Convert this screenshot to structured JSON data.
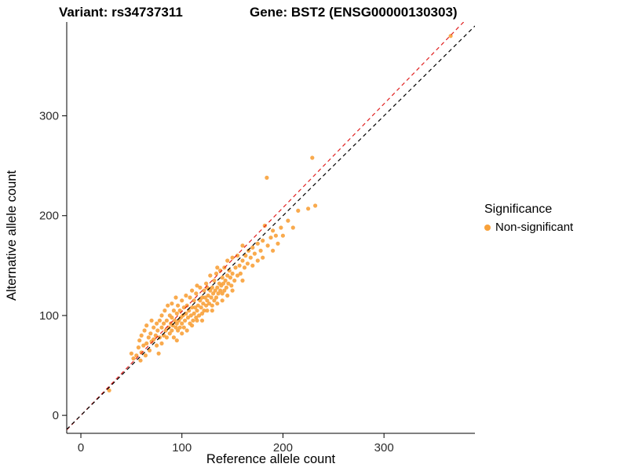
{
  "titles": {
    "variant": "Variant: rs34737311",
    "gene": "Gene: BST2 (ENSG00000130303)"
  },
  "legend": {
    "title": "Significance",
    "items": [
      {
        "label": "Non-significant",
        "color": "#F8A13A"
      }
    ]
  },
  "chart_data": {
    "type": "scatter",
    "title": "Variant: rs34737311 — Gene: BST2 (ENSG00000130303)",
    "xlabel": "Reference allele count",
    "ylabel": "Alternative allele count",
    "xlim": [
      -14,
      390
    ],
    "ylim": [
      -18,
      394
    ],
    "x_ticks": [
      0,
      100,
      200,
      300
    ],
    "y_ticks": [
      0,
      100,
      200,
      300
    ],
    "grid": false,
    "legend_position": "right",
    "point_color": "#F8A13A",
    "point_radius": 2.6,
    "lines": [
      {
        "name": "fit-line",
        "slope": 1.04,
        "intercept": 0,
        "color": "#E02020",
        "dash": "dashed"
      },
      {
        "name": "identity-line",
        "slope": 1.0,
        "intercept": 0,
        "color": "#000000",
        "dash": "dashed"
      }
    ],
    "series": [
      {
        "name": "Non-significant",
        "points": [
          [
            28,
            25
          ],
          [
            50,
            62
          ],
          [
            52,
            57
          ],
          [
            55,
            60
          ],
          [
            57,
            68
          ],
          [
            58,
            75
          ],
          [
            59,
            55
          ],
          [
            60,
            63
          ],
          [
            60,
            80
          ],
          [
            62,
            70
          ],
          [
            63,
            85
          ],
          [
            64,
            60
          ],
          [
            65,
            72
          ],
          [
            65,
            90
          ],
          [
            67,
            78
          ],
          [
            68,
            65
          ],
          [
            69,
            82
          ],
          [
            70,
            74
          ],
          [
            70,
            95
          ],
          [
            72,
            76
          ],
          [
            72,
            88
          ],
          [
            74,
            80
          ],
          [
            75,
            70
          ],
          [
            75,
            92
          ],
          [
            76,
            85
          ],
          [
            77,
            62
          ],
          [
            78,
            78
          ],
          [
            78,
            95
          ],
          [
            80,
            72
          ],
          [
            80,
            88
          ],
          [
            80,
            100
          ],
          [
            82,
            80
          ],
          [
            82,
            92
          ],
          [
            83,
            105
          ],
          [
            84,
            85
          ],
          [
            85,
            78
          ],
          [
            85,
            95
          ],
          [
            86,
            110
          ],
          [
            87,
            88
          ],
          [
            88,
            82
          ],
          [
            88,
            100
          ],
          [
            89,
            92
          ],
          [
            90,
            85
          ],
          [
            90,
            98
          ],
          [
            90,
            112
          ],
          [
            91,
            90
          ],
          [
            92,
            78
          ],
          [
            92,
            105
          ],
          [
            93,
            95
          ],
          [
            94,
            88
          ],
          [
            94,
            118
          ],
          [
            95,
            75
          ],
          [
            95,
            92
          ],
          [
            95,
            102
          ],
          [
            96,
            85
          ],
          [
            96,
            110
          ],
          [
            97,
            95
          ],
          [
            98,
            88
          ],
          [
            98,
            105
          ],
          [
            99,
            98
          ],
          [
            100,
            82
          ],
          [
            100,
            92
          ],
          [
            100,
            115
          ],
          [
            101,
            100
          ],
          [
            102,
            88
          ],
          [
            102,
            108
          ],
          [
            103,
            95
          ],
          [
            104,
            102
          ],
          [
            104,
            120
          ],
          [
            105,
            85
          ],
          [
            105,
            110
          ],
          [
            106,
            98
          ],
          [
            107,
            105
          ],
          [
            108,
            92
          ],
          [
            108,
            118
          ],
          [
            109,
            100
          ],
          [
            110,
            90
          ],
          [
            110,
            108
          ],
          [
            110,
            125
          ],
          [
            111,
            95
          ],
          [
            112,
            102
          ],
          [
            112,
            115
          ],
          [
            113,
            108
          ],
          [
            114,
            98
          ],
          [
            114,
            122
          ],
          [
            115,
            95
          ],
          [
            115,
            105
          ],
          [
            115,
            130
          ],
          [
            116,
            110
          ],
          [
            117,
            100
          ],
          [
            118,
            115
          ],
          [
            118,
            128
          ],
          [
            119,
            108
          ],
          [
            120,
            95
          ],
          [
            120,
            102
          ],
          [
            120,
            118
          ],
          [
            121,
            112
          ],
          [
            122,
            105
          ],
          [
            122,
            125
          ],
          [
            123,
            118
          ],
          [
            124,
            110
          ],
          [
            124,
            132
          ],
          [
            125,
            105
          ],
          [
            125,
            115
          ],
          [
            125,
            128
          ],
          [
            126,
            120
          ],
          [
            127,
            112
          ],
          [
            128,
            125
          ],
          [
            128,
            140
          ],
          [
            129,
            118
          ],
          [
            130,
            105
          ],
          [
            130,
            110
          ],
          [
            130,
            128
          ],
          [
            131,
            122
          ],
          [
            132,
            115
          ],
          [
            132,
            135
          ],
          [
            133,
            125
          ],
          [
            134,
            118
          ],
          [
            134,
            142
          ],
          [
            135,
            112
          ],
          [
            135,
            128
          ],
          [
            135,
            148
          ],
          [
            136,
            122
          ],
          [
            137,
            132
          ],
          [
            138,
            125
          ],
          [
            138,
            145
          ],
          [
            139,
            130
          ],
          [
            140,
            115
          ],
          [
            140,
            122
          ],
          [
            140,
            138
          ],
          [
            141,
            132
          ],
          [
            142,
            125
          ],
          [
            142,
            148
          ],
          [
            143,
            135
          ],
          [
            144,
            128
          ],
          [
            145,
            120
          ],
          [
            145,
            140
          ],
          [
            145,
            155
          ],
          [
            146,
            132
          ],
          [
            147,
            145
          ],
          [
            148,
            138
          ],
          [
            149,
            130
          ],
          [
            150,
            125
          ],
          [
            150,
            142
          ],
          [
            150,
            158
          ],
          [
            152,
            135
          ],
          [
            153,
            148
          ],
          [
            155,
            140
          ],
          [
            155,
            160
          ],
          [
            157,
            150
          ],
          [
            158,
            142
          ],
          [
            160,
            135
          ],
          [
            160,
            155
          ],
          [
            160,
            170
          ],
          [
            162,
            148
          ],
          [
            163,
            160
          ],
          [
            165,
            152
          ],
          [
            166,
            165
          ],
          [
            168,
            158
          ],
          [
            170,
            150
          ],
          [
            170,
            168
          ],
          [
            172,
            162
          ],
          [
            175,
            155
          ],
          [
            175,
            172
          ],
          [
            178,
            165
          ],
          [
            180,
            158
          ],
          [
            180,
            175
          ],
          [
            182,
            190
          ],
          [
            184,
            238
          ],
          [
            185,
            170
          ],
          [
            188,
            178
          ],
          [
            190,
            165
          ],
          [
            190,
            185
          ],
          [
            193,
            180
          ],
          [
            195,
            172
          ],
          [
            198,
            188
          ],
          [
            200,
            180
          ],
          [
            205,
            195
          ],
          [
            210,
            188
          ],
          [
            215,
            205
          ],
          [
            225,
            207
          ],
          [
            229,
            258
          ],
          [
            232,
            210
          ],
          [
            366,
            380
          ]
        ]
      }
    ]
  }
}
